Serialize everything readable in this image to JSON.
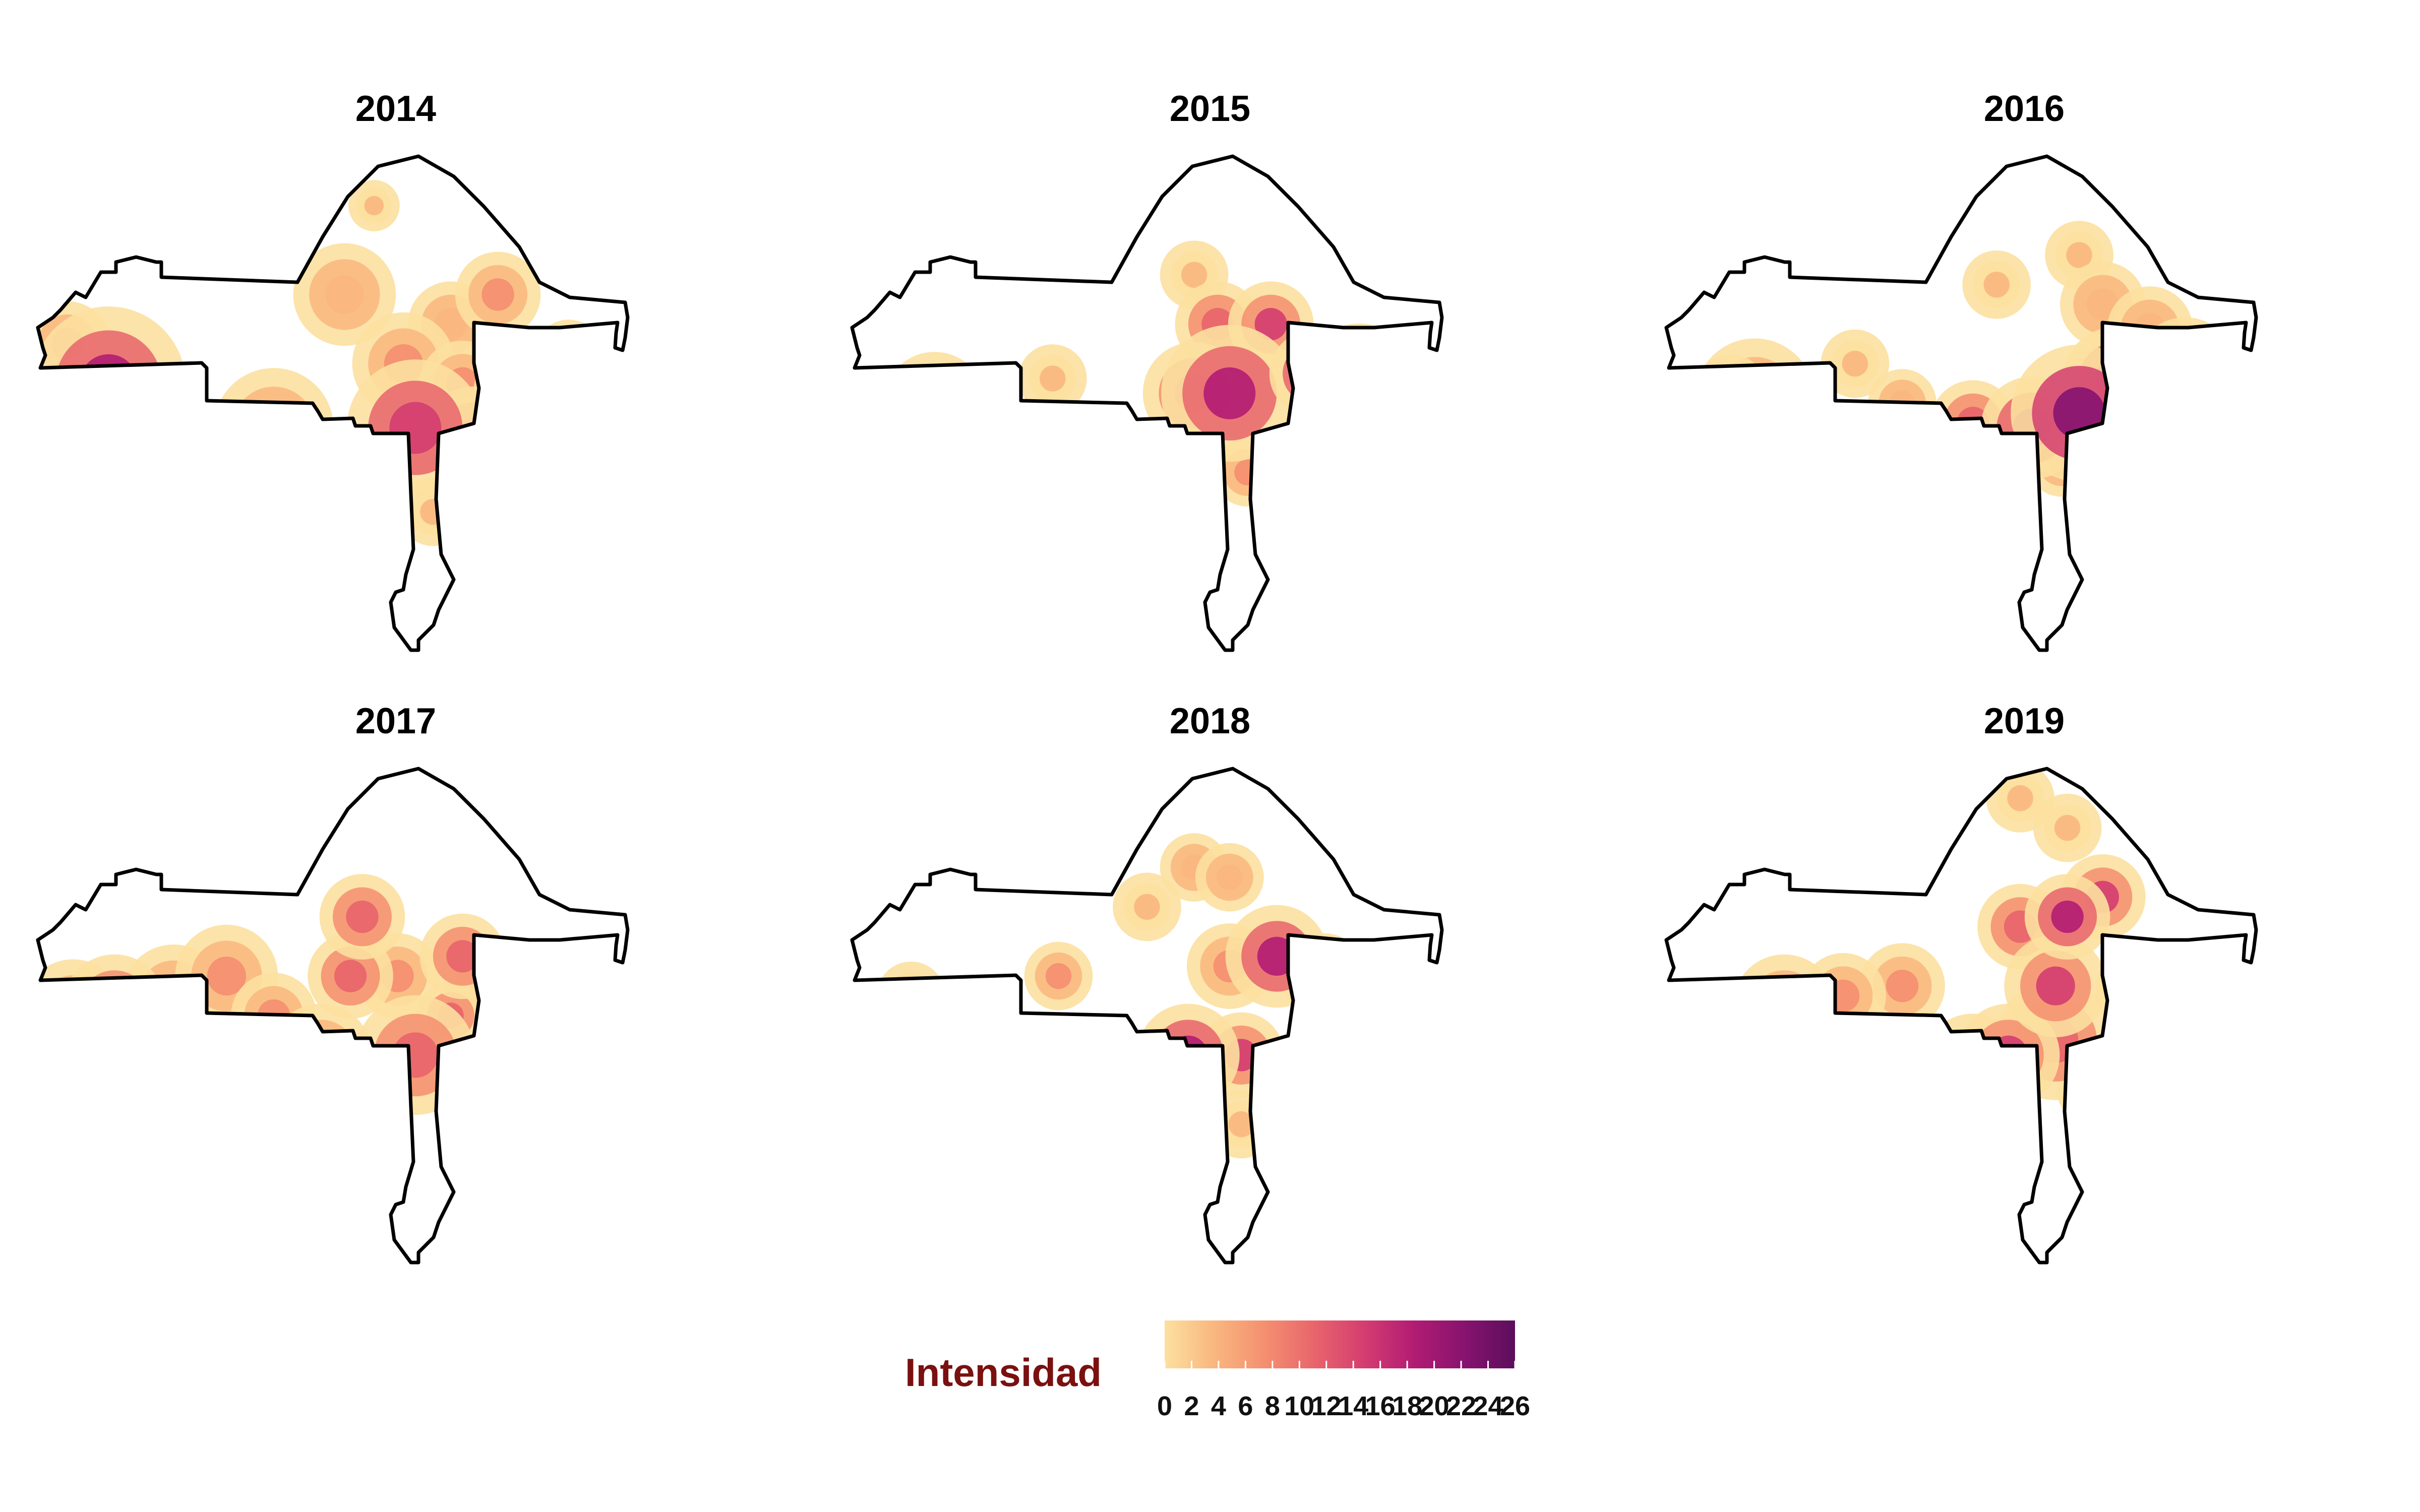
{
  "panels": [
    {
      "year": "2014",
      "hotspots": [
        [
          0.12,
          0.46,
          0.09,
          20
        ],
        [
          0.06,
          0.55,
          0.07,
          8
        ],
        [
          0.05,
          0.38,
          0.05,
          6
        ],
        [
          0.4,
          0.55,
          0.07,
          8
        ],
        [
          0.52,
          0.28,
          0.06,
          4
        ],
        [
          0.62,
          0.42,
          0.06,
          7
        ],
        [
          0.64,
          0.55,
          0.08,
          16
        ],
        [
          0.74,
          0.57,
          0.06,
          12
        ],
        [
          0.7,
          0.34,
          0.05,
          5
        ],
        [
          0.78,
          0.28,
          0.05,
          6
        ],
        [
          0.84,
          0.48,
          0.07,
          9
        ],
        [
          0.72,
          0.46,
          0.05,
          8
        ],
        [
          0.9,
          0.4,
          0.04,
          4
        ],
        [
          0.57,
          0.1,
          0.03,
          3
        ],
        [
          0.98,
          0.45,
          0.03,
          8
        ],
        [
          0.67,
          0.72,
          0.04,
          3
        ]
      ]
    },
    {
      "year": "2015",
      "hotspots": [
        [
          0.14,
          0.5,
          0.06,
          8
        ],
        [
          0.05,
          0.6,
          0.07,
          3
        ],
        [
          0.34,
          0.45,
          0.04,
          3
        ],
        [
          0.42,
          0.58,
          0.04,
          6
        ],
        [
          0.58,
          0.48,
          0.06,
          12
        ],
        [
          0.64,
          0.48,
          0.08,
          19
        ],
        [
          0.62,
          0.34,
          0.05,
          11
        ],
        [
          0.71,
          0.34,
          0.05,
          14
        ],
        [
          0.78,
          0.44,
          0.05,
          20
        ],
        [
          0.86,
          0.46,
          0.07,
          11
        ],
        [
          0.96,
          0.48,
          0.05,
          10
        ],
        [
          0.58,
          0.24,
          0.04,
          3
        ],
        [
          0.67,
          0.64,
          0.04,
          6
        ]
      ]
    },
    {
      "year": "2016",
      "hotspots": [
        [
          0.11,
          0.47,
          0.04,
          18
        ],
        [
          0.15,
          0.49,
          0.07,
          6
        ],
        [
          0.04,
          0.55,
          0.05,
          5
        ],
        [
          0.32,
          0.42,
          0.04,
          3
        ],
        [
          0.4,
          0.5,
          0.04,
          4
        ],
        [
          0.52,
          0.54,
          0.05,
          10
        ],
        [
          0.62,
          0.55,
          0.06,
          17
        ],
        [
          0.7,
          0.52,
          0.08,
          24
        ],
        [
          0.76,
          0.45,
          0.06,
          19
        ],
        [
          0.74,
          0.3,
          0.05,
          5
        ],
        [
          0.82,
          0.35,
          0.05,
          5
        ],
        [
          0.88,
          0.43,
          0.06,
          11
        ],
        [
          0.97,
          0.48,
          0.05,
          11
        ],
        [
          0.56,
          0.26,
          0.04,
          3
        ],
        [
          0.7,
          0.2,
          0.04,
          3
        ],
        [
          0.67,
          0.62,
          0.04,
          6
        ]
      ]
    },
    {
      "year": "2017",
      "hotspots": [
        [
          0.06,
          0.49,
          0.06,
          6
        ],
        [
          0.13,
          0.48,
          0.06,
          11
        ],
        [
          0.23,
          0.46,
          0.06,
          7
        ],
        [
          0.32,
          0.42,
          0.06,
          8
        ],
        [
          0.4,
          0.5,
          0.05,
          8
        ],
        [
          0.48,
          0.58,
          0.06,
          8
        ],
        [
          0.53,
          0.42,
          0.05,
          10
        ],
        [
          0.55,
          0.3,
          0.05,
          10
        ],
        [
          0.61,
          0.42,
          0.05,
          6
        ],
        [
          0.64,
          0.58,
          0.07,
          12
        ],
        [
          0.72,
          0.38,
          0.05,
          11
        ],
        [
          0.7,
          0.5,
          0.04,
          10
        ],
        [
          0.76,
          0.42,
          0.05,
          9
        ]
      ]
    },
    {
      "year": "2018",
      "hotspots": [
        [
          0.04,
          0.6,
          0.05,
          5
        ],
        [
          0.1,
          0.46,
          0.04,
          3
        ],
        [
          0.35,
          0.42,
          0.04,
          8
        ],
        [
          0.57,
          0.58,
          0.06,
          20
        ],
        [
          0.66,
          0.58,
          0.05,
          14
        ],
        [
          0.64,
          0.4,
          0.05,
          9
        ],
        [
          0.58,
          0.2,
          0.04,
          4
        ],
        [
          0.64,
          0.22,
          0.04,
          5
        ],
        [
          0.72,
          0.38,
          0.06,
          17
        ],
        [
          0.8,
          0.42,
          0.05,
          10
        ],
        [
          0.88,
          0.5,
          0.06,
          8
        ],
        [
          0.96,
          0.5,
          0.05,
          8
        ],
        [
          0.66,
          0.72,
          0.04,
          3
        ],
        [
          0.5,
          0.28,
          0.04,
          3
        ]
      ]
    },
    {
      "year": "2019",
      "hotspots": [
        [
          0.05,
          0.52,
          0.05,
          6
        ],
        [
          0.12,
          0.52,
          0.05,
          7
        ],
        [
          0.2,
          0.48,
          0.06,
          8
        ],
        [
          0.3,
          0.46,
          0.05,
          7
        ],
        [
          0.4,
          0.44,
          0.05,
          6
        ],
        [
          0.52,
          0.6,
          0.06,
          10
        ],
        [
          0.58,
          0.58,
          0.06,
          14
        ],
        [
          0.66,
          0.44,
          0.06,
          14
        ],
        [
          0.68,
          0.3,
          0.05,
          18
        ],
        [
          0.74,
          0.26,
          0.05,
          13
        ],
        [
          0.6,
          0.32,
          0.05,
          10
        ],
        [
          0.66,
          0.55,
          0.07,
          12
        ],
        [
          0.68,
          0.12,
          0.04,
          3
        ],
        [
          0.6,
          0.06,
          0.04,
          3
        ],
        [
          0.8,
          0.45,
          0.05,
          8
        ],
        [
          0.72,
          0.65,
          0.04,
          9
        ]
      ]
    }
  ],
  "legend": {
    "title": "Intensidad",
    "min": 0,
    "max": 26,
    "ticks": [
      "0",
      "2",
      "4",
      "6",
      "8",
      "10",
      "12",
      "14",
      "16",
      "18",
      "20",
      "22",
      "24",
      "26"
    ]
  },
  "colors": {
    "palette": [
      "#fce0a0",
      "#f9b77f",
      "#f48e70",
      "#e8646c",
      "#d43d70",
      "#b21c73",
      "#85136f",
      "#5c0e5c"
    ],
    "outline": "#000000",
    "legend_title": "#7a1010"
  }
}
